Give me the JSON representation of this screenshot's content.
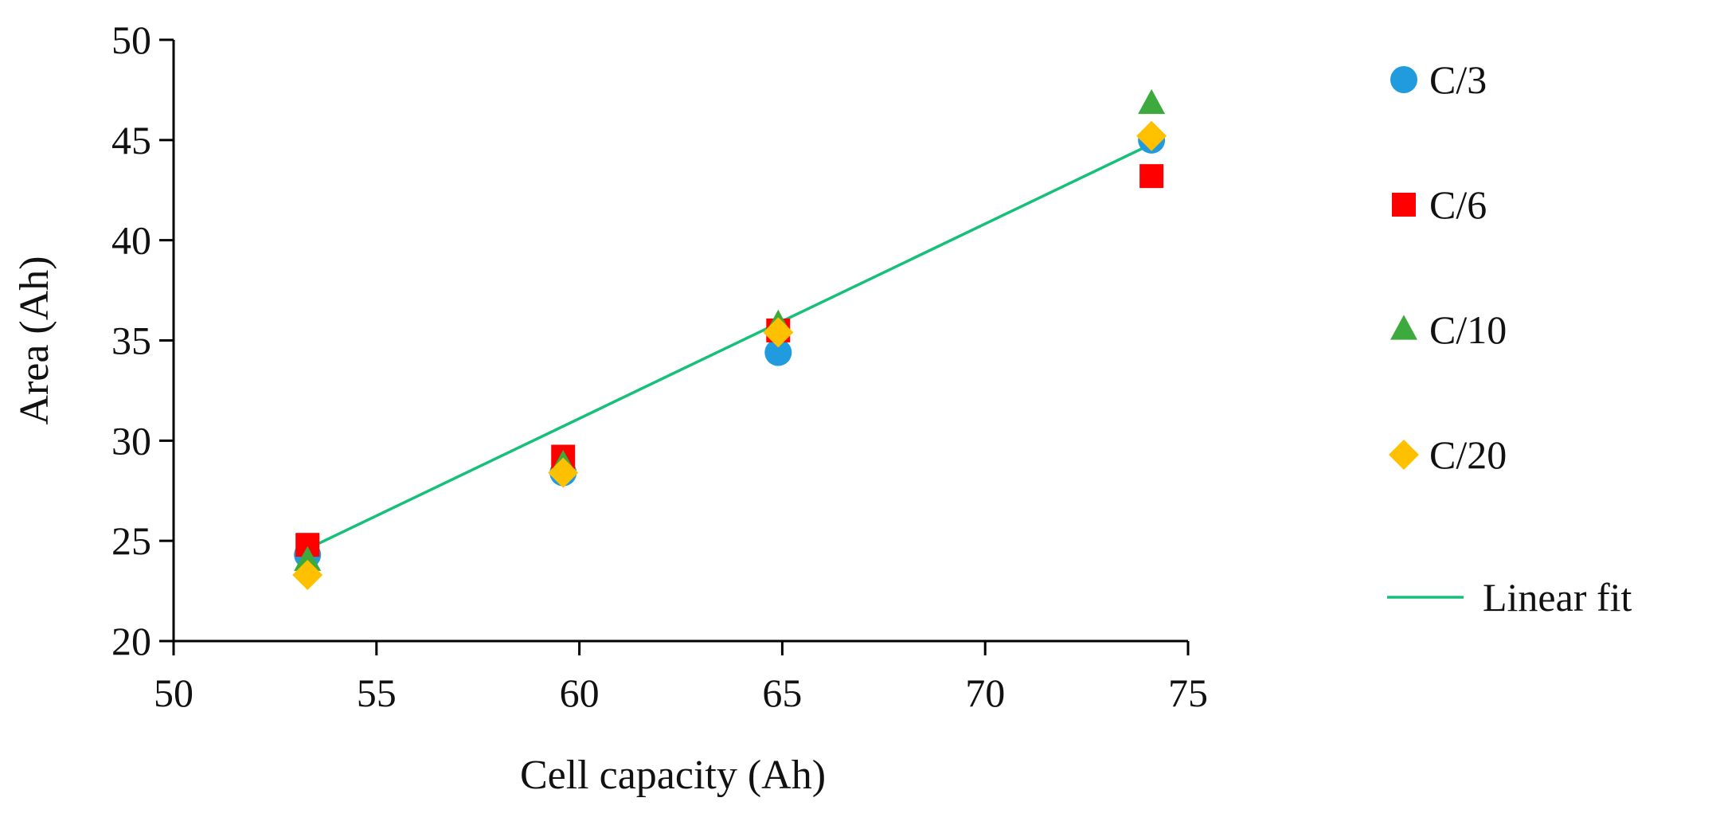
{
  "chart_data": {
    "type": "scatter",
    "title": "",
    "xlabel": "Cell capacity (Ah)",
    "ylabel": "Area (Ah)",
    "xlim": [
      50,
      75
    ],
    "ylim": [
      20,
      50
    ],
    "xticks": [
      50,
      55,
      60,
      65,
      70,
      75
    ],
    "yticks": [
      20,
      25,
      30,
      35,
      40,
      45,
      50
    ],
    "grid": false,
    "legend_position": "right",
    "series": [
      {
        "name": "C/3",
        "marker": "circle",
        "color": "#1F9BDE",
        "x": [
          53.3,
          59.6,
          64.9,
          74.1
        ],
        "y": [
          24.3,
          28.4,
          34.4,
          45.0
        ]
      },
      {
        "name": "C/6",
        "marker": "square",
        "color": "#FF0000",
        "x": [
          53.3,
          59.6,
          64.9,
          74.1
        ],
        "y": [
          24.8,
          29.2,
          35.5,
          43.2
        ]
      },
      {
        "name": "C/10",
        "marker": "triangle",
        "color": "#3DAA3D",
        "x": [
          53.3,
          59.6,
          64.9,
          74.1
        ],
        "y": [
          24.0,
          28.8,
          35.8,
          46.8
        ]
      },
      {
        "name": "C/20",
        "marker": "diamond",
        "color": "#FFC000",
        "x": [
          53.3,
          59.6,
          64.9,
          74.1
        ],
        "y": [
          23.3,
          28.4,
          35.4,
          45.2
        ]
      }
    ],
    "fit": {
      "name": "Linear fit",
      "color": "#16C07A",
      "x": [
        53.3,
        74.1
      ],
      "y": [
        24.6,
        44.8
      ]
    }
  }
}
